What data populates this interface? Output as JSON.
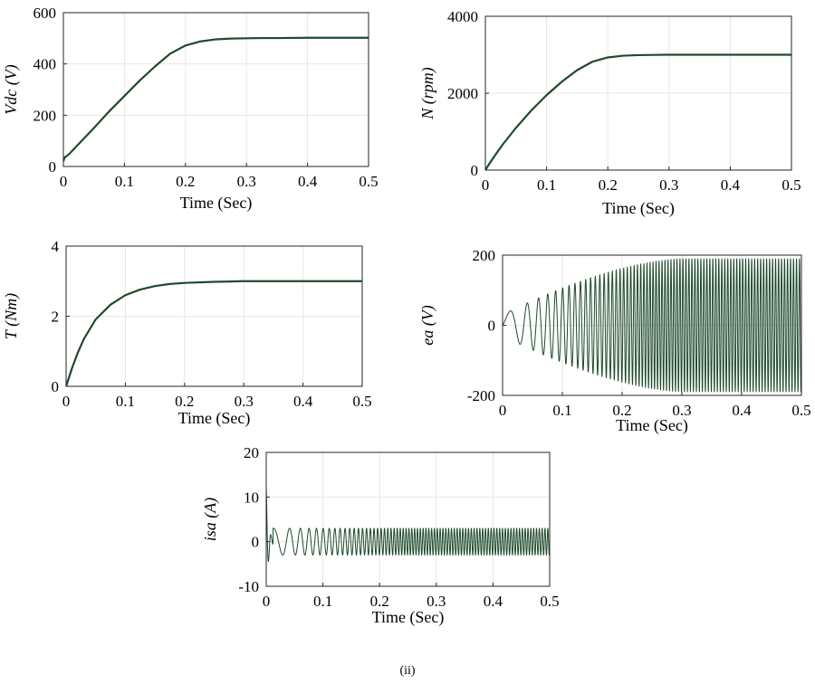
{
  "caption": "(ii)",
  "chart_data": [
    {
      "id": "vdc",
      "type": "line",
      "xlabel": "Time (Sec)",
      "ylabel": "Vdc (V)",
      "xlim": [
        0,
        0.5
      ],
      "ylim": [
        0,
        600
      ],
      "xticks": [
        0,
        0.1,
        0.2,
        0.3,
        0.4,
        0.5
      ],
      "yticks": [
        0,
        200,
        400,
        600
      ],
      "grid": true,
      "color": "#1f4a2c",
      "series": [
        {
          "x": [
            0,
            0.002,
            0.005,
            0.01,
            0.02,
            0.03,
            0.05,
            0.075,
            0.1,
            0.125,
            0.15,
            0.175,
            0.2,
            0.225,
            0.25,
            0.275,
            0.3,
            0.325,
            0.35,
            0.4,
            0.45,
            0.5
          ],
          "y": [
            20,
            35,
            40,
            50,
            75,
            100,
            150,
            215,
            275,
            335,
            390,
            440,
            472,
            488,
            496,
            499,
            500,
            501,
            501,
            502,
            502,
            502
          ]
        }
      ]
    },
    {
      "id": "speed",
      "type": "line",
      "xlabel": "Time (Sec)",
      "ylabel": "N (rpm)",
      "xlim": [
        0,
        0.5
      ],
      "ylim": [
        0,
        4000
      ],
      "xticks": [
        0,
        0.1,
        0.2,
        0.3,
        0.4,
        0.5
      ],
      "yticks": [
        0,
        2000,
        4000
      ],
      "grid": true,
      "color": "#1f4a2c",
      "series": [
        {
          "x": [
            0,
            0.005,
            0.01,
            0.02,
            0.03,
            0.05,
            0.075,
            0.1,
            0.125,
            0.15,
            0.175,
            0.2,
            0.225,
            0.25,
            0.275,
            0.3,
            0.35,
            0.4,
            0.45,
            0.5
          ],
          "y": [
            0,
            130,
            250,
            480,
            700,
            1100,
            1550,
            1950,
            2300,
            2600,
            2820,
            2930,
            2975,
            2990,
            2995,
            3000,
            3000,
            3000,
            3000,
            3000
          ]
        }
      ]
    },
    {
      "id": "torque",
      "type": "line",
      "xlabel": "Time (Sec)",
      "ylabel": "T (Nm)",
      "xlim": [
        0,
        0.5
      ],
      "ylim": [
        0,
        4
      ],
      "xticks": [
        0,
        0.1,
        0.2,
        0.3,
        0.4,
        0.5
      ],
      "yticks": [
        0,
        2,
        4
      ],
      "grid": true,
      "color": "#1f4a2c",
      "series": [
        {
          "x": [
            0,
            0.01,
            0.02,
            0.03,
            0.05,
            0.075,
            0.1,
            0.125,
            0.15,
            0.175,
            0.2,
            0.25,
            0.3,
            0.35,
            0.4,
            0.45,
            0.5
          ],
          "y": [
            0,
            0.52,
            0.97,
            1.35,
            1.91,
            2.33,
            2.6,
            2.76,
            2.86,
            2.92,
            2.95,
            2.98,
            3.0,
            3.0,
            3.0,
            3.0,
            3.0
          ]
        }
      ]
    },
    {
      "id": "emf",
      "type": "line",
      "xlabel": "Time (Sec)",
      "ylabel": "ea (V)",
      "xlim": [
        0,
        0.5
      ],
      "ylim": [
        -200,
        200
      ],
      "xticks": [
        0,
        0.1,
        0.2,
        0.3,
        0.4,
        0.5
      ],
      "yticks": [
        -200,
        0,
        200
      ],
      "grid": true,
      "color": "#1f4a2c",
      "signal": {
        "kind": "oscillation",
        "amplitude_start": 30,
        "amplitude_end": 190,
        "settle_time": 0.3,
        "freq_start": 15,
        "freq_end": 200,
        "freq_settle_time": 0.25
      }
    },
    {
      "id": "current",
      "type": "line",
      "xlabel": "Time (Sec)",
      "ylabel": "isa (A)",
      "xlim": [
        0,
        0.5
      ],
      "ylim": [
        -10,
        20
      ],
      "xticks": [
        0,
        0.1,
        0.2,
        0.3,
        0.4,
        0.5
      ],
      "yticks": [
        -10,
        0,
        10,
        20
      ],
      "grid": true,
      "color": "#1f4a2c",
      "signal": {
        "kind": "oscillation",
        "initial_spike": 12,
        "amplitude": 3,
        "freq_start": 15,
        "freq_end": 200,
        "freq_settle_time": 0.25
      }
    }
  ]
}
